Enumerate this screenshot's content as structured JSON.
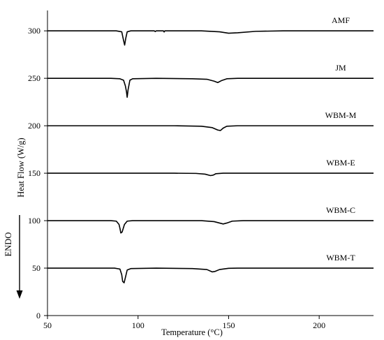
{
  "chart_data": {
    "type": "line",
    "title": "",
    "xlabel": "Temperature (°C)",
    "ylabel": "Heat Flow (W/g)",
    "endo_label": "ENDO",
    "xlim": [
      50,
      230
    ],
    "ylim": [
      0,
      320
    ],
    "xticks": [
      50,
      100,
      150,
      200
    ],
    "yticks": [
      0,
      50,
      100,
      150,
      200,
      250,
      300
    ],
    "grid": false,
    "legend": "inline labels at right",
    "line_color": "#000000",
    "series": [
      {
        "name": "AMF",
        "points": [
          [
            50,
            300
          ],
          [
            88,
            300
          ],
          [
            91,
            299
          ],
          [
            92,
            290
          ],
          [
            92.6,
            285
          ],
          [
            93.2,
            292
          ],
          [
            94,
            299
          ],
          [
            96,
            300
          ],
          [
            109,
            300
          ],
          [
            109.5,
            299.2
          ],
          [
            110,
            300
          ],
          [
            114,
            300
          ],
          [
            114.4,
            298.8
          ],
          [
            114.8,
            300
          ],
          [
            135,
            300
          ],
          [
            145,
            299
          ],
          [
            150,
            297.5
          ],
          [
            155,
            298
          ],
          [
            165,
            299.5
          ],
          [
            180,
            300
          ],
          [
            230,
            300
          ]
        ]
      },
      {
        "name": "JM",
        "points": [
          [
            50,
            250
          ],
          [
            85,
            250
          ],
          [
            90,
            249.5
          ],
          [
            92,
            248
          ],
          [
            93,
            242
          ],
          [
            93.6,
            236
          ],
          [
            94,
            230
          ],
          [
            94.5,
            238
          ],
          [
            95.5,
            248
          ],
          [
            97,
            249.5
          ],
          [
            110,
            250
          ],
          [
            130,
            249.5
          ],
          [
            138,
            249
          ],
          [
            142,
            247
          ],
          [
            144,
            245.5
          ],
          [
            146,
            247.5
          ],
          [
            149,
            249.5
          ],
          [
            155,
            250
          ],
          [
            230,
            250
          ]
        ]
      },
      {
        "name": "WBM-M",
        "points": [
          [
            50,
            200
          ],
          [
            120,
            200
          ],
          [
            135,
            199.5
          ],
          [
            141,
            198
          ],
          [
            144,
            195.5
          ],
          [
            145.5,
            195
          ],
          [
            147,
            197.5
          ],
          [
            149,
            199.5
          ],
          [
            155,
            200
          ],
          [
            230,
            200
          ]
        ]
      },
      {
        "name": "WBM-E",
        "points": [
          [
            50,
            150
          ],
          [
            120,
            150
          ],
          [
            132,
            149.8
          ],
          [
            137,
            149
          ],
          [
            140,
            147.5
          ],
          [
            141.5,
            148
          ],
          [
            143,
            149.5
          ],
          [
            147,
            150
          ],
          [
            230,
            150
          ]
        ]
      },
      {
        "name": "WBM-C",
        "points": [
          [
            50,
            100
          ],
          [
            85,
            100
          ],
          [
            88,
            99.5
          ],
          [
            89.5,
            96
          ],
          [
            90,
            92
          ],
          [
            90.5,
            87
          ],
          [
            91.2,
            88
          ],
          [
            92.5,
            96
          ],
          [
            94,
            99.5
          ],
          [
            97,
            100
          ],
          [
            135,
            100
          ],
          [
            142,
            99
          ],
          [
            147,
            96.5
          ],
          [
            149,
            97.5
          ],
          [
            152,
            99.5
          ],
          [
            158,
            100
          ],
          [
            230,
            100
          ]
        ]
      },
      {
        "name": "WBM-T",
        "points": [
          [
            50,
            50
          ],
          [
            87,
            50
          ],
          [
            90,
            49
          ],
          [
            91,
            43
          ],
          [
            91.5,
            36
          ],
          [
            92.3,
            34.5
          ],
          [
            93,
            40
          ],
          [
            94,
            48
          ],
          [
            96,
            49.5
          ],
          [
            110,
            50
          ],
          [
            130,
            49.5
          ],
          [
            138,
            48.5
          ],
          [
            141,
            46
          ],
          [
            142.5,
            46.5
          ],
          [
            145,
            48.5
          ],
          [
            150,
            49.8
          ],
          [
            155,
            50
          ],
          [
            230,
            50
          ]
        ]
      }
    ]
  }
}
